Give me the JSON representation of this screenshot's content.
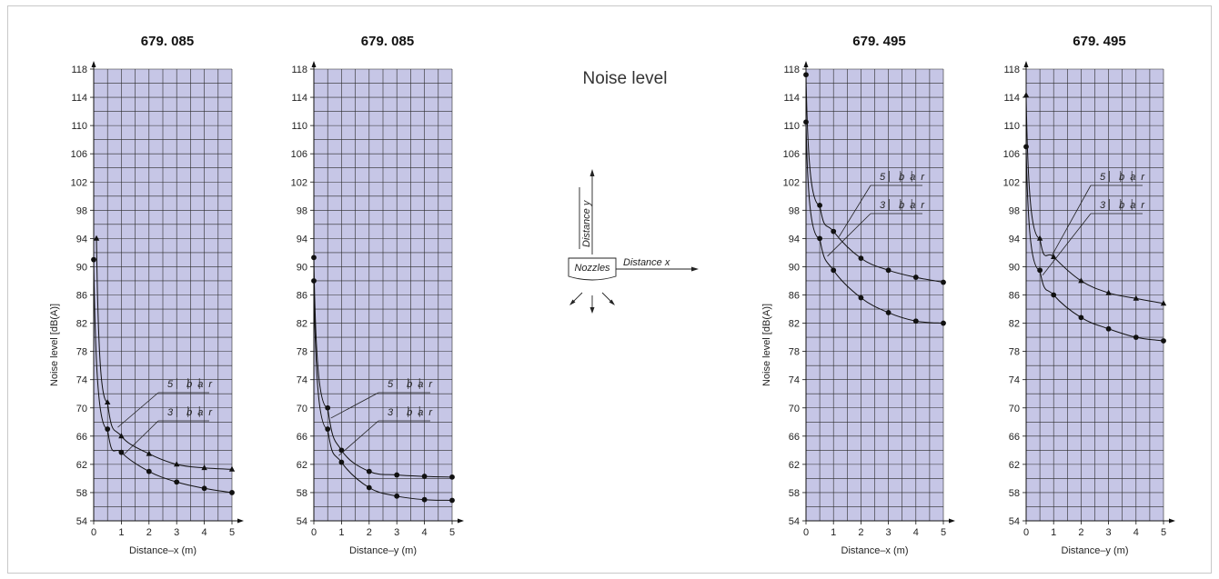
{
  "page_title": "Noise level",
  "diagram": {
    "distance_y_label": "Distance y",
    "distance_x_label": "Distance x",
    "nozzles_label": "Nozzles"
  },
  "chart_data": [
    {
      "type": "line",
      "title": "679. 085",
      "xlabel": "Distance–x (m)",
      "ylabel": "Noise level [dB(A)]",
      "xlim": [
        0,
        5
      ],
      "ylim": [
        54,
        118
      ],
      "x_ticks": [
        0,
        1,
        2,
        3,
        4,
        5
      ],
      "y_ticks": [
        54,
        58,
        62,
        66,
        70,
        74,
        78,
        82,
        86,
        90,
        94,
        98,
        102,
        106,
        110,
        114,
        118
      ],
      "grid": true,
      "series": [
        {
          "name": "5 bar",
          "marker": "triangle",
          "x": [
            0.1,
            0.5,
            1,
            2,
            3,
            4,
            5
          ],
          "y": [
            94,
            70.8,
            66,
            63.5,
            62,
            61.5,
            61.3
          ]
        },
        {
          "name": "3 bar",
          "marker": "circle",
          "x": [
            0,
            0.5,
            1,
            2,
            3,
            4,
            5
          ],
          "y": [
            91,
            67,
            63.7,
            61,
            59.5,
            58.6,
            58
          ]
        }
      ]
    },
    {
      "type": "line",
      "title": "679. 085",
      "xlabel": "Distance–y (m)",
      "ylabel": "",
      "xlim": [
        0,
        5
      ],
      "ylim": [
        54,
        118
      ],
      "x_ticks": [
        0,
        1,
        2,
        3,
        4,
        5
      ],
      "y_ticks": [
        54,
        58,
        62,
        66,
        70,
        74,
        78,
        82,
        86,
        90,
        94,
        98,
        102,
        106,
        110,
        114,
        118
      ],
      "grid": true,
      "series": [
        {
          "name": "5 bar",
          "marker": "circle",
          "x": [
            0,
            0.5,
            1,
            2,
            3,
            4,
            5
          ],
          "y": [
            91.3,
            70,
            64,
            61,
            60.5,
            60.3,
            60.2
          ]
        },
        {
          "name": "3 bar",
          "marker": "circle",
          "x": [
            0,
            0.5,
            1,
            2,
            3,
            4,
            5
          ],
          "y": [
            88,
            67,
            62.3,
            58.7,
            57.5,
            57,
            56.9
          ]
        }
      ]
    },
    {
      "type": "line",
      "title": "679. 495",
      "xlabel": "Distance–x (m)",
      "ylabel": "Noise level [dB(A)]",
      "xlim": [
        0,
        5
      ],
      "ylim": [
        54,
        118
      ],
      "x_ticks": [
        0,
        1,
        2,
        3,
        4,
        5
      ],
      "y_ticks": [
        54,
        58,
        62,
        66,
        70,
        74,
        78,
        82,
        86,
        90,
        94,
        98,
        102,
        106,
        110,
        114,
        118
      ],
      "grid": true,
      "series": [
        {
          "name": "5 bar",
          "marker": "circle",
          "x": [
            0,
            0.5,
            1,
            2,
            3,
            4,
            5
          ],
          "y": [
            117.2,
            98.7,
            95,
            91.2,
            89.5,
            88.5,
            87.8
          ]
        },
        {
          "name": "3 bar",
          "marker": "circle",
          "x": [
            0,
            0.5,
            1,
            2,
            3,
            4,
            5
          ],
          "y": [
            110.5,
            94,
            89.5,
            85.6,
            83.5,
            82.3,
            82
          ]
        }
      ]
    },
    {
      "type": "line",
      "title": "679. 495",
      "xlabel": "Distance–y (m)",
      "ylabel": "",
      "xlim": [
        0,
        5
      ],
      "ylim": [
        54,
        118
      ],
      "x_ticks": [
        0,
        1,
        2,
        3,
        4,
        5
      ],
      "y_ticks": [
        54,
        58,
        62,
        66,
        70,
        74,
        78,
        82,
        86,
        90,
        94,
        98,
        102,
        106,
        110,
        114,
        118
      ],
      "grid": true,
      "series": [
        {
          "name": "5 bar",
          "marker": "triangle",
          "x": [
            0,
            0.5,
            1,
            2,
            3,
            4,
            5
          ],
          "y": [
            114.3,
            94,
            91.4,
            88,
            86.3,
            85.5,
            84.8
          ]
        },
        {
          "name": "3 bar",
          "marker": "circle",
          "x": [
            0,
            0.5,
            1,
            2,
            3,
            4,
            5
          ],
          "y": [
            107,
            89.5,
            86,
            82.8,
            81.2,
            80,
            79.5
          ]
        }
      ]
    }
  ],
  "colors": {
    "plot_background": "#c6c6e6",
    "grid": "#2a2a2a",
    "curve": "#111111"
  }
}
